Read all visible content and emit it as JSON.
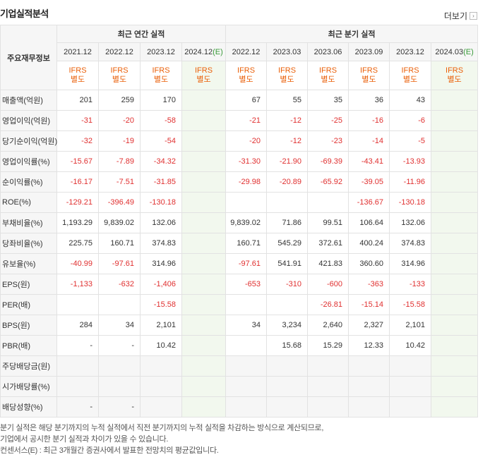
{
  "title": "기업실적분석",
  "more_label": "더보기",
  "header": {
    "row_label": "주요재무정보",
    "annual_label": "최근 연간 실적",
    "quarter_label": "최근 분기 실적",
    "annual_periods": [
      "2021.12",
      "2022.12",
      "2023.12",
      "2024.12"
    ],
    "quarter_periods": [
      "2022.12",
      "2023.03",
      "2023.06",
      "2023.09",
      "2023.12",
      "2024.03"
    ],
    "est_mark": "(E)",
    "ifrs_top": "IFRS",
    "ifrs_bottom": "별도"
  },
  "rows": [
    {
      "label": "매출액(억원)",
      "annual": [
        "201",
        "259",
        "170",
        ""
      ],
      "quarter": [
        "67",
        "55",
        "35",
        "36",
        "43",
        ""
      ]
    },
    {
      "label": "영업이익(억원)",
      "annual": [
        "-31",
        "-20",
        "-58",
        ""
      ],
      "quarter": [
        "-21",
        "-12",
        "-25",
        "-16",
        "-6",
        ""
      ]
    },
    {
      "label": "당기순이익(억원)",
      "annual": [
        "-32",
        "-19",
        "-54",
        ""
      ],
      "quarter": [
        "-20",
        "-12",
        "-23",
        "-14",
        "-5",
        ""
      ]
    },
    {
      "label": "영업이익률(%)",
      "annual": [
        "-15.67",
        "-7.89",
        "-34.32",
        ""
      ],
      "quarter": [
        "-31.30",
        "-21.90",
        "-69.39",
        "-43.41",
        "-13.93",
        ""
      ]
    },
    {
      "label": "순이익률(%)",
      "annual": [
        "-16.17",
        "-7.51",
        "-31.85",
        ""
      ],
      "quarter": [
        "-29.98",
        "-20.89",
        "-65.92",
        "-39.05",
        "-11.96",
        ""
      ]
    },
    {
      "label": "ROE(%)",
      "annual": [
        "-129.21",
        "-396.49",
        "-130.18",
        ""
      ],
      "quarter": [
        "",
        "",
        "",
        "-136.67",
        "-130.18",
        ""
      ]
    },
    {
      "label": "부채비율(%)",
      "annual": [
        "1,193.29",
        "9,839.02",
        "132.06",
        ""
      ],
      "quarter": [
        "9,839.02",
        "71.86",
        "99.51",
        "106.64",
        "132.06",
        ""
      ]
    },
    {
      "label": "당좌비율(%)",
      "annual": [
        "225.75",
        "160.71",
        "374.83",
        ""
      ],
      "quarter": [
        "160.71",
        "545.29",
        "372.61",
        "400.24",
        "374.83",
        ""
      ]
    },
    {
      "label": "유보율(%)",
      "annual": [
        "-40.99",
        "-97.61",
        "314.96",
        ""
      ],
      "quarter": [
        "-97.61",
        "541.91",
        "421.83",
        "360.60",
        "314.96",
        ""
      ]
    },
    {
      "label": "EPS(원)",
      "annual": [
        "-1,133",
        "-632",
        "-1,406",
        ""
      ],
      "quarter": [
        "-653",
        "-310",
        "-600",
        "-363",
        "-133",
        ""
      ]
    },
    {
      "label": "PER(배)",
      "annual": [
        "",
        "",
        "-15.58",
        ""
      ],
      "quarter": [
        "",
        "",
        "-26.81",
        "-15.14",
        "-15.58",
        ""
      ]
    },
    {
      "label": "BPS(원)",
      "annual": [
        "284",
        "34",
        "2,101",
        ""
      ],
      "quarter": [
        "34",
        "3,234",
        "2,640",
        "2,327",
        "2,101",
        ""
      ]
    },
    {
      "label": "PBR(배)",
      "annual": [
        "-",
        "-",
        "10.42",
        ""
      ],
      "quarter": [
        "",
        "15.68",
        "15.29",
        "12.33",
        "10.42",
        ""
      ]
    },
    {
      "label": "주당배당금(원)",
      "annual": [
        "",
        "",
        "",
        ""
      ],
      "quarter": [
        "",
        "",
        "",
        "",
        "",
        ""
      ]
    },
    {
      "label": "시가배당률(%)",
      "annual": [
        "",
        "",
        "",
        ""
      ],
      "quarter": [
        "",
        "",
        "",
        "",
        "",
        ""
      ]
    },
    {
      "label": "배당성향(%)",
      "annual": [
        "-",
        "-",
        "",
        ""
      ],
      "quarter": [
        "",
        "",
        "",
        "",
        "",
        ""
      ]
    }
  ],
  "notes": [
    "분기 실적은 해당 분기까지의 누적 실적에서 직전 분기까지의 누적 실적을 차감하는 방식으로 계산되므로,",
    "기업에서 공시한 분기 실적과 차이가 있을 수 있습니다.",
    "컨센서스(E) : 최근 3개월간 증권사에서 발표한 전망치의 평균값입니다."
  ]
}
